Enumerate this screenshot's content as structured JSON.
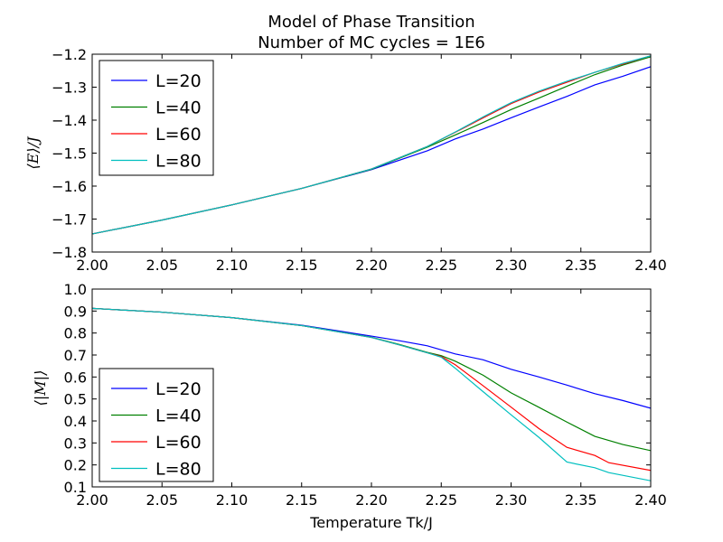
{
  "figure": {
    "title_line1": "Model of Phase Transition",
    "title_line2": "Number of MC cycles = 1E6"
  },
  "chart_data": [
    {
      "type": "line",
      "title": "",
      "xlabel": "",
      "ylabel": "⟨E⟩/J",
      "xlim": [
        2.0,
        2.4
      ],
      "ylim": [
        -1.8,
        -1.2
      ],
      "xticks": [
        "2.00",
        "2.05",
        "2.10",
        "2.15",
        "2.20",
        "2.25",
        "2.30",
        "2.35",
        "2.40"
      ],
      "yticks": [
        "-1.8",
        "-1.7",
        "-1.6",
        "-1.5",
        "-1.4",
        "-1.3",
        "-1.2"
      ],
      "legend_position": "top-left",
      "series": [
        {
          "name": "L=20",
          "color": "#0000ff",
          "x": [
            2.0,
            2.05,
            2.1,
            2.15,
            2.2,
            2.24,
            2.26,
            2.28,
            2.3,
            2.32,
            2.34,
            2.36,
            2.38,
            2.4
          ],
          "y": [
            -1.745,
            -1.703,
            -1.657,
            -1.607,
            -1.55,
            -1.493,
            -1.457,
            -1.427,
            -1.393,
            -1.36,
            -1.328,
            -1.293,
            -1.267,
            -1.238
          ]
        },
        {
          "name": "L=40",
          "color": "#008000",
          "x": [
            2.0,
            2.05,
            2.1,
            2.15,
            2.2,
            2.24,
            2.26,
            2.28,
            2.3,
            2.32,
            2.34,
            2.36,
            2.38,
            2.4
          ],
          "y": [
            -1.745,
            -1.703,
            -1.657,
            -1.607,
            -1.549,
            -1.482,
            -1.445,
            -1.407,
            -1.368,
            -1.333,
            -1.297,
            -1.262,
            -1.233,
            -1.208
          ]
        },
        {
          "name": "L=60",
          "color": "#ff0000",
          "x": [
            2.0,
            2.05,
            2.1,
            2.15,
            2.2,
            2.24,
            2.26,
            2.28,
            2.3,
            2.32,
            2.34,
            2.36,
            2.38,
            2.4
          ],
          "y": [
            -1.745,
            -1.703,
            -1.657,
            -1.607,
            -1.548,
            -1.48,
            -1.437,
            -1.393,
            -1.35,
            -1.315,
            -1.285,
            -1.255,
            -1.23,
            -1.205
          ]
        },
        {
          "name": "L=80",
          "color": "#00bfbf",
          "x": [
            2.0,
            2.05,
            2.1,
            2.15,
            2.2,
            2.24,
            2.26,
            2.28,
            2.3,
            2.32,
            2.34,
            2.36,
            2.38,
            2.4
          ],
          "y": [
            -1.745,
            -1.703,
            -1.657,
            -1.607,
            -1.548,
            -1.48,
            -1.436,
            -1.39,
            -1.347,
            -1.312,
            -1.282,
            -1.255,
            -1.228,
            -1.205
          ]
        }
      ]
    },
    {
      "type": "line",
      "title": "",
      "xlabel": "Temperature Tk/J",
      "ylabel": "⟨|M|⟩",
      "xlim": [
        2.0,
        2.4
      ],
      "ylim": [
        0.1,
        1.0
      ],
      "xticks": [
        "2.00",
        "2.05",
        "2.10",
        "2.15",
        "2.20",
        "2.25",
        "2.30",
        "2.35",
        "2.40"
      ],
      "yticks": [
        "0.1",
        "0.2",
        "0.3",
        "0.4",
        "0.5",
        "0.6",
        "0.7",
        "0.8",
        "0.9",
        "1.0"
      ],
      "legend_position": "bottom-left",
      "series": [
        {
          "name": "L=20",
          "color": "#0000ff",
          "x": [
            2.0,
            2.05,
            2.1,
            2.15,
            2.2,
            2.22,
            2.24,
            2.26,
            2.28,
            2.3,
            2.32,
            2.34,
            2.36,
            2.38,
            2.4
          ],
          "y": [
            0.912,
            0.895,
            0.87,
            0.836,
            0.786,
            0.765,
            0.742,
            0.705,
            0.678,
            0.635,
            0.6,
            0.563,
            0.524,
            0.493,
            0.458
          ]
        },
        {
          "name": "L=40",
          "color": "#008000",
          "x": [
            2.0,
            2.05,
            2.1,
            2.15,
            2.2,
            2.22,
            2.24,
            2.25,
            2.26,
            2.28,
            2.3,
            2.32,
            2.34,
            2.36,
            2.38,
            2.4
          ],
          "y": [
            0.912,
            0.895,
            0.87,
            0.834,
            0.781,
            0.748,
            0.712,
            0.697,
            0.672,
            0.608,
            0.528,
            0.462,
            0.395,
            0.33,
            0.293,
            0.265
          ]
        },
        {
          "name": "L=60",
          "color": "#ff0000",
          "x": [
            2.0,
            2.05,
            2.1,
            2.15,
            2.2,
            2.22,
            2.24,
            2.25,
            2.26,
            2.28,
            2.3,
            2.32,
            2.34,
            2.36,
            2.37,
            2.4
          ],
          "y": [
            0.912,
            0.895,
            0.87,
            0.834,
            0.78,
            0.746,
            0.71,
            0.693,
            0.656,
            0.56,
            0.463,
            0.365,
            0.28,
            0.243,
            0.21,
            0.175
          ]
        },
        {
          "name": "L=80",
          "color": "#00bfbf",
          "x": [
            2.0,
            2.05,
            2.1,
            2.15,
            2.2,
            2.22,
            2.24,
            2.25,
            2.26,
            2.28,
            2.3,
            2.32,
            2.34,
            2.36,
            2.37,
            2.4
          ],
          "y": [
            0.912,
            0.895,
            0.87,
            0.834,
            0.78,
            0.746,
            0.71,
            0.69,
            0.64,
            0.533,
            0.428,
            0.325,
            0.213,
            0.187,
            0.165,
            0.128
          ]
        }
      ]
    }
  ]
}
